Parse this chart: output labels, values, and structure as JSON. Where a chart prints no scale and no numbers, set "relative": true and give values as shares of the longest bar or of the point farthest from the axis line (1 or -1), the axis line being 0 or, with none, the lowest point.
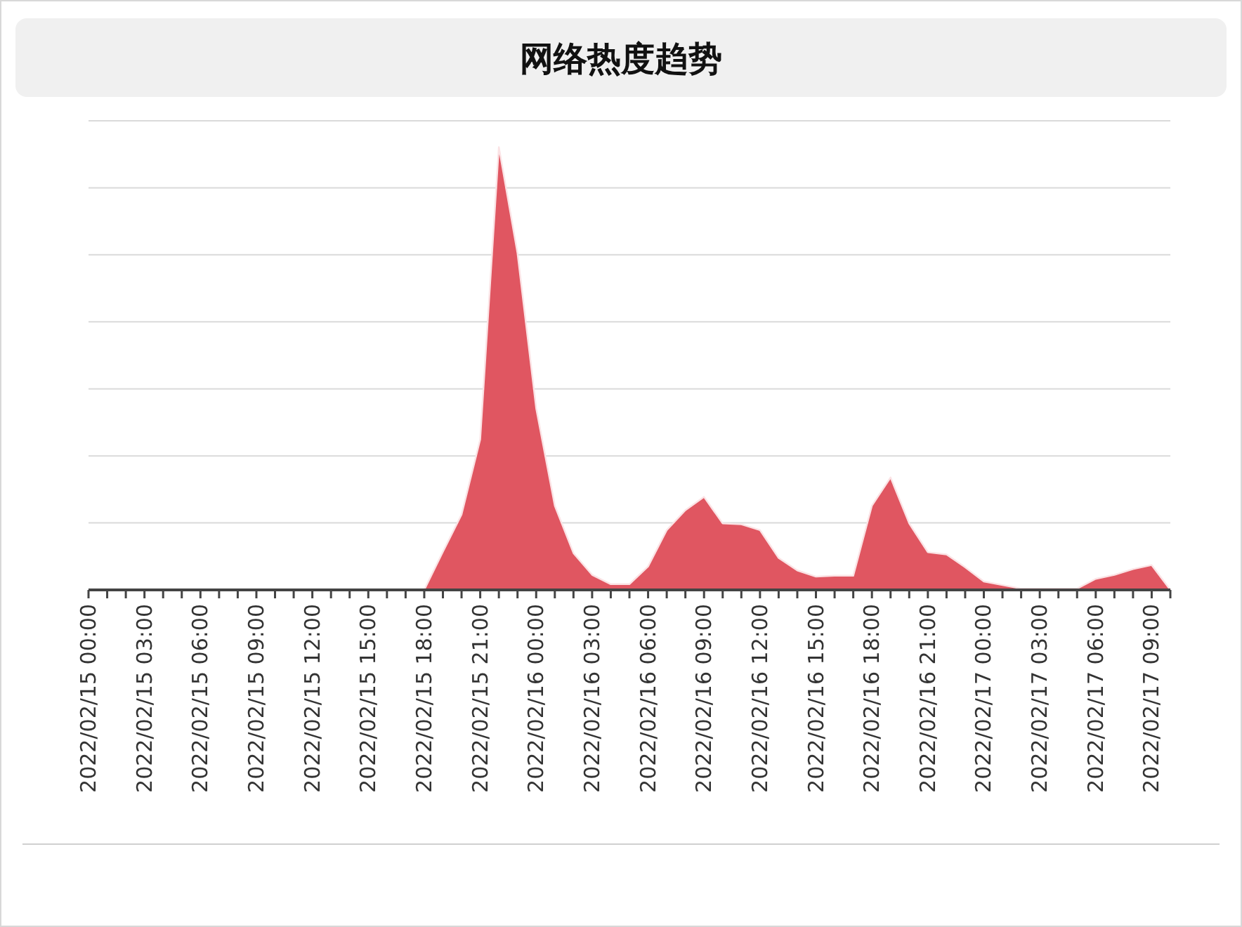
{
  "chart_data": {
    "type": "area",
    "title": "网络热度趋势",
    "relative": true,
    "grid": true,
    "color": "#e05661",
    "categories": [
      "2022/02/15 00:00",
      null,
      null,
      "2022/02/15 03:00",
      null,
      null,
      "2022/02/15 06:00",
      null,
      null,
      "2022/02/15 09:00",
      null,
      null,
      "2022/02/15 12:00",
      null,
      null,
      "2022/02/15 15:00",
      null,
      null,
      "2022/02/15 18:00",
      null,
      null,
      "2022/02/15 21:00",
      null,
      null,
      "2022/02/16 00:00",
      null,
      null,
      "2022/02/16 03:00",
      null,
      null,
      "2022/02/16 06:00",
      null,
      null,
      "2022/02/16 09:00",
      null,
      null,
      "2022/02/16 12:00",
      null,
      null,
      "2022/02/16 15:00",
      null,
      null,
      "2022/02/16 18:00",
      null,
      null,
      "2022/02/16 21:00",
      null,
      null,
      "2022/02/17 00:00",
      null,
      null,
      "2022/02/17 03:00",
      null,
      null,
      "2022/02/17 06:00",
      null,
      null,
      "2022/02/17 09:00",
      null
    ],
    "values": [
      0,
      0,
      0,
      0,
      0,
      0,
      0,
      0,
      0,
      0,
      0,
      0,
      0,
      0,
      0,
      0,
      0,
      0,
      0,
      0.086,
      0.17,
      0.34,
      1,
      0.76,
      0.41,
      0.19,
      0.083,
      0.034,
      0.013,
      0.013,
      0.053,
      0.135,
      0.18,
      0.21,
      0.15,
      0.148,
      0.135,
      0.072,
      0.044,
      0.03,
      0.032,
      0.032,
      0.19,
      0.254,
      0.15,
      0.085,
      0.08,
      0.051,
      0.019,
      0.011,
      0.003,
      0.003,
      0.003,
      0.003,
      0.025,
      0.034,
      0.047,
      0.056,
      0
    ]
  }
}
